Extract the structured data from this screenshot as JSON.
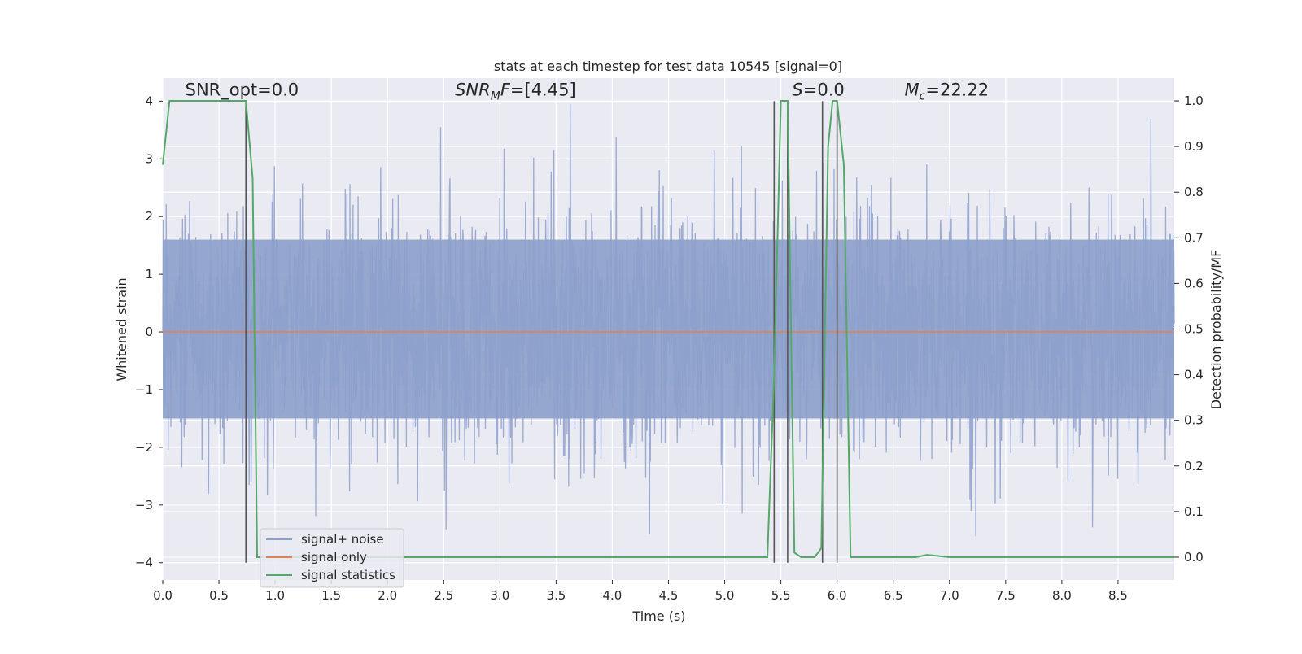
{
  "chart_data": {
    "type": "line",
    "title": "stats at each timestep for test data 10545 [signal=0]",
    "xlabel": "Time (s)",
    "ylabel": "Whitened strain",
    "ylabel_right": "Detection probability/MF",
    "xlim": [
      0.0,
      9.0
    ],
    "ylim": [
      -4.3,
      4.4
    ],
    "ylim_right": [
      -0.05,
      1.05
    ],
    "xticks": [
      0.0,
      0.5,
      1.0,
      1.5,
      2.0,
      2.5,
      3.0,
      3.5,
      4.0,
      4.5,
      5.0,
      5.5,
      6.0,
      6.5,
      7.0,
      7.5,
      8.0,
      8.5
    ],
    "xtick_labels": [
      "0.0",
      "0.5",
      "1.0",
      "1.5",
      "2.0",
      "2.5",
      "3.0",
      "3.5",
      "4.0",
      "4.5",
      "5.0",
      "5.5",
      "6.0",
      "6.5",
      "7.0",
      "7.5",
      "8.0",
      "8.5"
    ],
    "yticks": [
      -4,
      -3,
      -2,
      -1,
      0,
      1,
      2,
      3,
      4
    ],
    "ytick_labels": [
      "−4",
      "−3",
      "−2",
      "−1",
      "0",
      "1",
      "2",
      "3",
      "4"
    ],
    "yticks_right": [
      0.0,
      0.1,
      0.2,
      0.3,
      0.4,
      0.5,
      0.6,
      0.7,
      0.8,
      0.9,
      1.0
    ],
    "ytick_right_labels": [
      "0.0",
      "0.1",
      "0.2",
      "0.3",
      "0.4",
      "0.5",
      "0.6",
      "0.7",
      "0.8",
      "0.9",
      "1.0"
    ],
    "grid": true,
    "legend_position": "lower-left",
    "annotations": [
      {
        "text": "SNR_opt=0.0",
        "x": 0.2,
        "y": 4.1
      },
      {
        "text": "SNR_MF=[4.45]",
        "x": 2.6,
        "y": 4.1
      },
      {
        "text": "S=0.0",
        "x": 5.6,
        "y": 4.1
      },
      {
        "text": "M_c=22.22",
        "x": 6.6,
        "y": 4.1
      }
    ],
    "vlines": {
      "x": [
        0.74,
        5.44,
        5.56,
        5.87,
        6.0
      ],
      "ymin": -4.0,
      "ymax": 4.0,
      "color": "#555555"
    },
    "series": [
      {
        "name": "signal+ noise",
        "color": "#8da0cb",
        "axis": "left",
        "noise_envelope": {
          "core_band": [
            -1.5,
            1.6
          ],
          "peak_max": 3.95,
          "peak_min": -3.95
        }
      },
      {
        "name": "signal only",
        "color": "#dd8452",
        "axis": "left",
        "x": [
          0.0,
          9.0
        ],
        "y": [
          0.0,
          0.0
        ]
      },
      {
        "name": "signal statistics",
        "color": "#55a868",
        "axis": "right",
        "x": [
          0.0,
          0.06,
          0.1,
          0.2,
          0.3,
          0.4,
          0.5,
          0.6,
          0.7,
          0.74,
          0.8,
          0.84,
          0.9,
          1.0,
          1.5,
          2.0,
          2.5,
          3.0,
          3.5,
          4.0,
          4.5,
          5.0,
          5.38,
          5.44,
          5.5,
          5.56,
          5.62,
          5.68,
          5.8,
          5.86,
          5.92,
          5.96,
          6.0,
          6.06,
          6.12,
          6.5,
          6.7,
          6.8,
          7.0,
          8.0,
          9.0
        ],
        "y": [
          0.86,
          1.0,
          1.0,
          1.0,
          1.0,
          1.0,
          1.0,
          1.0,
          1.0,
          1.0,
          0.83,
          0.0,
          0.0,
          0.0,
          0.0,
          0.0,
          0.0,
          0.0,
          0.0,
          0.0,
          0.0,
          0.0,
          0.0,
          0.4,
          1.0,
          1.0,
          0.01,
          0.0,
          0.0,
          0.02,
          0.9,
          1.0,
          1.0,
          0.86,
          0.0,
          0.0,
          0.0,
          0.005,
          0.0,
          0.0,
          0.0
        ]
      }
    ]
  }
}
